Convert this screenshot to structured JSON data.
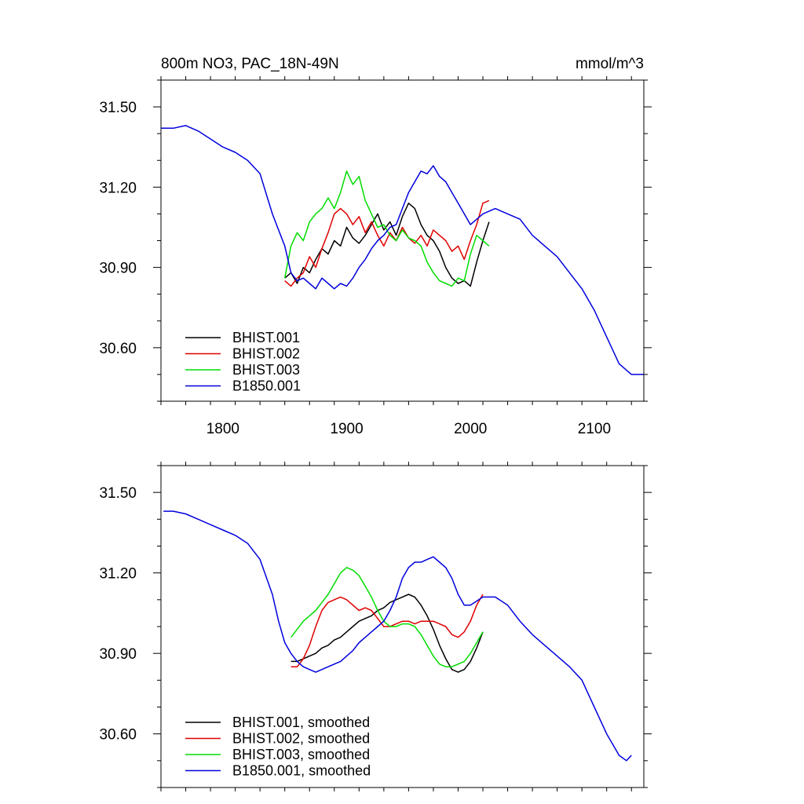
{
  "chart_data": [
    {
      "type": "line",
      "title_left": "800m NO3, PAC_18N-49N",
      "title_right": "mmol/m^3",
      "xlabel": "",
      "ylabel": "",
      "xlim": [
        1750,
        2140
      ],
      "ylim": [
        30.4,
        31.6
      ],
      "x_ticks": [
        1800,
        1900,
        2000,
        2100
      ],
      "y_ticks": [
        30.6,
        30.9,
        31.2,
        31.5
      ],
      "x_tick_labels": [
        "1800",
        "1900",
        "2000",
        "2100"
      ],
      "y_tick_labels": [
        "30.60",
        "30.90",
        "31.20",
        "31.50"
      ],
      "legend_position": "bottom-left",
      "grid": false,
      "series": [
        {
          "name": "BHIST.001",
          "color": "#000000",
          "x": [
            1850,
            1855,
            1860,
            1865,
            1870,
            1875,
            1880,
            1885,
            1890,
            1895,
            1900,
            1905,
            1910,
            1915,
            1920,
            1925,
            1930,
            1935,
            1940,
            1945,
            1950,
            1955,
            1960,
            1965,
            1970,
            1975,
            1980,
            1985,
            1990,
            1995,
            2000,
            2005,
            2010,
            2015
          ],
          "y": [
            30.86,
            30.88,
            30.84,
            30.9,
            30.88,
            30.93,
            30.97,
            30.95,
            31.0,
            30.98,
            31.05,
            31.01,
            30.99,
            31.02,
            31.06,
            31.1,
            31.04,
            31.07,
            31.02,
            31.09,
            31.14,
            31.12,
            31.06,
            31.02,
            31.0,
            30.96,
            30.9,
            30.86,
            30.84,
            30.85,
            30.83,
            30.92,
            31.0,
            31.07
          ]
        },
        {
          "name": "BHIST.002",
          "color": "#e00000",
          "x": [
            1850,
            1855,
            1860,
            1865,
            1870,
            1875,
            1880,
            1885,
            1890,
            1895,
            1900,
            1905,
            1910,
            1915,
            1920,
            1925,
            1930,
            1935,
            1940,
            1945,
            1950,
            1955,
            1960,
            1965,
            1970,
            1975,
            1980,
            1985,
            1990,
            1995,
            2000,
            2005,
            2010,
            2015
          ],
          "y": [
            30.85,
            30.83,
            30.86,
            30.88,
            30.94,
            30.9,
            30.97,
            31.03,
            31.1,
            31.12,
            31.1,
            31.06,
            31.09,
            31.03,
            31.07,
            31.02,
            30.98,
            31.03,
            31.0,
            31.05,
            31.01,
            30.99,
            31.02,
            30.98,
            31.04,
            31.02,
            31.0,
            30.96,
            30.98,
            30.93,
            31.0,
            31.06,
            31.14,
            31.15
          ]
        },
        {
          "name": "BHIST.003",
          "color": "#00dd00",
          "x": [
            1850,
            1855,
            1860,
            1865,
            1870,
            1875,
            1880,
            1885,
            1890,
            1895,
            1900,
            1905,
            1910,
            1915,
            1920,
            1925,
            1930,
            1935,
            1940,
            1945,
            1950,
            1955,
            1960,
            1965,
            1970,
            1975,
            1980,
            1985,
            1990,
            1995,
            2000,
            2005,
            2010,
            2015
          ],
          "y": [
            30.86,
            30.98,
            31.03,
            31.0,
            31.07,
            31.1,
            31.12,
            31.16,
            31.12,
            31.18,
            31.26,
            31.21,
            31.24,
            31.15,
            31.1,
            31.05,
            31.06,
            31.02,
            31.0,
            31.04,
            31.01,
            31.0,
            30.98,
            30.92,
            30.88,
            30.85,
            30.84,
            30.83,
            30.86,
            30.85,
            30.95,
            31.02,
            31.0,
            30.98
          ]
        },
        {
          "name": "B1850.001",
          "color": "#0000dd",
          "x": [
            1750,
            1760,
            1770,
            1780,
            1790,
            1800,
            1810,
            1820,
            1830,
            1840,
            1850,
            1855,
            1860,
            1865,
            1870,
            1875,
            1880,
            1885,
            1890,
            1895,
            1900,
            1905,
            1910,
            1915,
            1920,
            1925,
            1930,
            1935,
            1940,
            1945,
            1950,
            1955,
            1960,
            1965,
            1970,
            1975,
            1980,
            1985,
            1990,
            1995,
            2000,
            2010,
            2020,
            2030,
            2040,
            2050,
            2060,
            2070,
            2080,
            2090,
            2100,
            2110,
            2120,
            2130,
            2140
          ],
          "y": [
            31.42,
            31.42,
            31.43,
            31.41,
            31.38,
            31.35,
            31.33,
            31.3,
            31.25,
            31.1,
            30.98,
            30.88,
            30.85,
            30.86,
            30.84,
            30.82,
            30.86,
            30.84,
            30.82,
            30.84,
            30.83,
            30.86,
            30.9,
            30.93,
            30.97,
            31.0,
            31.02,
            31.05,
            31.06,
            31.12,
            31.18,
            31.22,
            31.26,
            31.25,
            31.28,
            31.24,
            31.22,
            31.18,
            31.14,
            31.1,
            31.06,
            31.1,
            31.12,
            31.1,
            31.08,
            31.02,
            30.98,
            30.94,
            30.88,
            30.82,
            30.74,
            30.64,
            30.54,
            30.5,
            30.5
          ]
        }
      ]
    },
    {
      "type": "line",
      "title_left": "",
      "title_right": "",
      "xlabel": "",
      "ylabel": "",
      "xlim": [
        1750,
        2140
      ],
      "ylim": [
        30.4,
        31.6
      ],
      "x_ticks": [
        1800,
        1900,
        2000,
        2100
      ],
      "y_ticks": [
        30.6,
        30.9,
        31.2,
        31.5
      ],
      "x_tick_labels": [],
      "y_tick_labels": [
        "30.60",
        "30.90",
        "31.20",
        "31.50"
      ],
      "legend_position": "bottom-left",
      "grid": false,
      "series": [
        {
          "name": "BHIST.001, smoothed",
          "color": "#000000",
          "x": [
            1855,
            1860,
            1865,
            1870,
            1875,
            1880,
            1885,
            1890,
            1895,
            1900,
            1905,
            1910,
            1915,
            1920,
            1925,
            1930,
            1935,
            1940,
            1945,
            1950,
            1955,
            1960,
            1965,
            1970,
            1975,
            1980,
            1985,
            1990,
            1995,
            2000,
            2005,
            2010
          ],
          "y": [
            30.87,
            30.87,
            30.88,
            30.89,
            30.9,
            30.92,
            30.93,
            30.95,
            30.96,
            30.98,
            31.0,
            31.02,
            31.03,
            31.04,
            31.06,
            31.07,
            31.09,
            31.1,
            31.11,
            31.12,
            31.11,
            31.08,
            31.04,
            30.99,
            30.93,
            30.88,
            30.84,
            30.83,
            30.84,
            30.87,
            30.92,
            30.98
          ]
        },
        {
          "name": "BHIST.002, smoothed",
          "color": "#e00000",
          "x": [
            1855,
            1860,
            1865,
            1870,
            1875,
            1880,
            1885,
            1890,
            1895,
            1900,
            1905,
            1910,
            1915,
            1920,
            1925,
            1930,
            1935,
            1940,
            1945,
            1950,
            1955,
            1960,
            1965,
            1970,
            1975,
            1980,
            1985,
            1990,
            1995,
            2000,
            2005,
            2010
          ],
          "y": [
            30.85,
            30.85,
            30.88,
            30.93,
            31.0,
            31.06,
            31.09,
            31.1,
            31.11,
            31.1,
            31.08,
            31.06,
            31.07,
            31.06,
            31.03,
            31.0,
            31.0,
            31.01,
            31.02,
            31.02,
            31.01,
            31.02,
            31.02,
            31.02,
            31.01,
            31.0,
            30.97,
            30.96,
            30.98,
            31.02,
            31.08,
            31.12
          ]
        },
        {
          "name": "BHIST.003, smoothed",
          "color": "#00dd00",
          "x": [
            1855,
            1860,
            1865,
            1870,
            1875,
            1880,
            1885,
            1890,
            1895,
            1900,
            1905,
            1910,
            1915,
            1920,
            1925,
            1930,
            1935,
            1940,
            1945,
            1950,
            1955,
            1960,
            1965,
            1970,
            1975,
            1980,
            1985,
            1990,
            1995,
            2000,
            2005,
            2010
          ],
          "y": [
            30.96,
            30.99,
            31.02,
            31.04,
            31.06,
            31.09,
            31.12,
            31.16,
            31.2,
            31.22,
            31.21,
            31.19,
            31.15,
            31.11,
            31.06,
            31.02,
            31.0,
            31.0,
            31.01,
            31.01,
            31.0,
            30.97,
            30.93,
            30.89,
            30.86,
            30.85,
            30.85,
            30.86,
            30.87,
            30.9,
            30.94,
            30.98
          ]
        },
        {
          "name": "B1850.001, smoothed",
          "color": "#0000dd",
          "x": [
            1752,
            1760,
            1770,
            1780,
            1790,
            1800,
            1810,
            1820,
            1830,
            1840,
            1845,
            1850,
            1855,
            1860,
            1865,
            1870,
            1875,
            1880,
            1885,
            1890,
            1895,
            1900,
            1905,
            1910,
            1915,
            1920,
            1925,
            1930,
            1935,
            1940,
            1945,
            1950,
            1955,
            1960,
            1965,
            1970,
            1975,
            1980,
            1985,
            1990,
            1995,
            2000,
            2010,
            2020,
            2030,
            2040,
            2050,
            2060,
            2070,
            2080,
            2090,
            2100,
            2110,
            2120,
            2126,
            2130
          ],
          "y": [
            31.43,
            31.43,
            31.42,
            31.4,
            31.38,
            31.36,
            31.34,
            31.31,
            31.25,
            31.12,
            31.02,
            30.94,
            30.9,
            30.87,
            30.85,
            30.84,
            30.83,
            30.84,
            30.85,
            30.86,
            30.87,
            30.89,
            30.91,
            30.94,
            30.96,
            30.98,
            31.0,
            31.02,
            31.06,
            31.11,
            31.18,
            31.22,
            31.24,
            31.24,
            31.25,
            31.26,
            31.24,
            31.22,
            31.18,
            31.12,
            31.08,
            31.08,
            31.11,
            31.11,
            31.08,
            31.02,
            30.97,
            30.93,
            30.89,
            30.85,
            30.8,
            30.7,
            30.6,
            30.52,
            30.5,
            30.52
          ]
        }
      ]
    }
  ]
}
